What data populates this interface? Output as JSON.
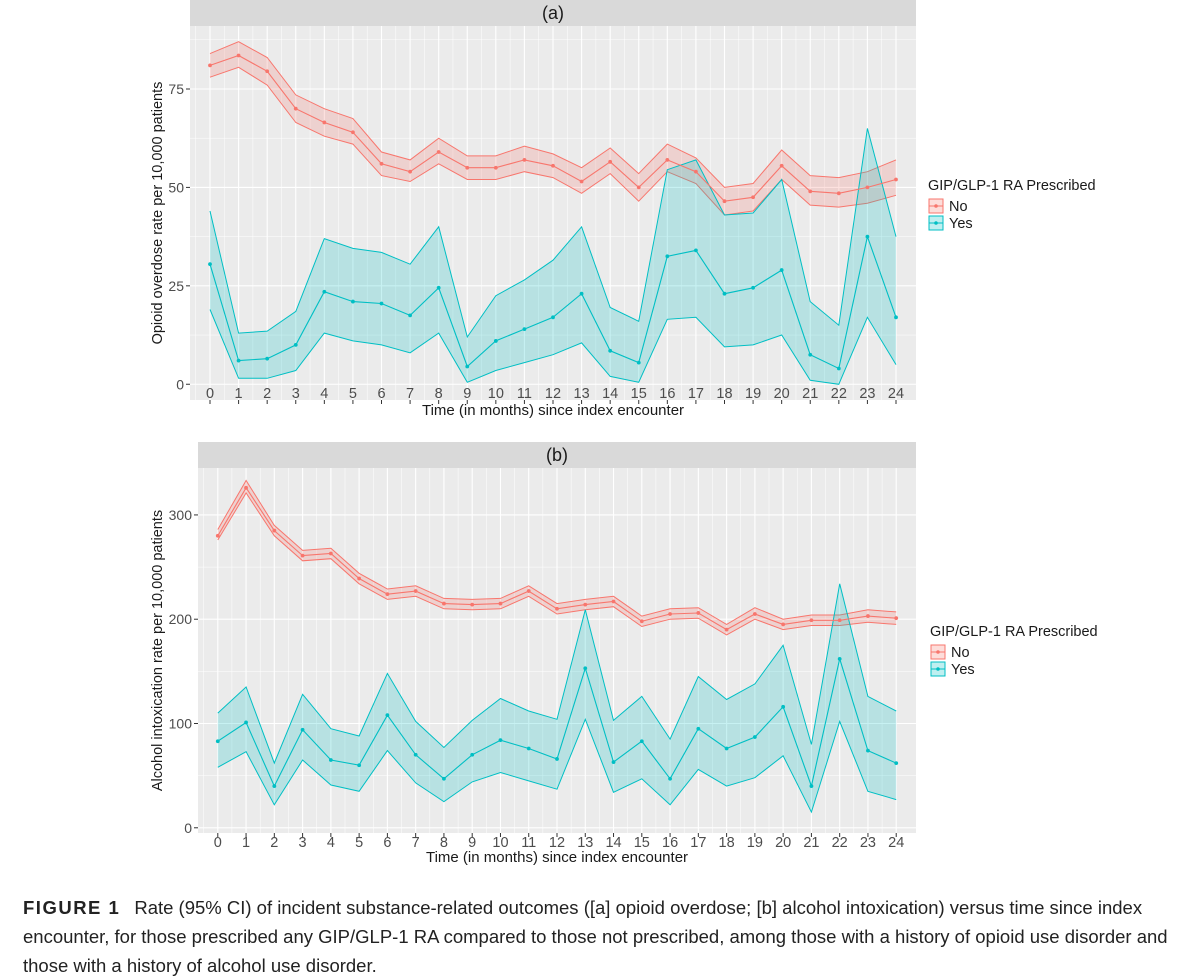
{
  "caption": {
    "label": "FIGURE 1",
    "text": "Rate (95% CI) of incident substance-related outcomes ([a] opioid overdose; [b] alcohol intoxication) versus time since index encounter, for those prescribed any GIP/GLP-1 RA compared to those not prescribed, among those with a history of opioid use disorder and those with a history of alcohol use disorder."
  },
  "colors": {
    "no": "#F8766D",
    "yes": "#00BFC4",
    "panel_bg": "#EBEBEB",
    "strip_bg": "#D9D9D9"
  },
  "chart_data": [
    {
      "type": "line",
      "panel": "(a)",
      "title": "",
      "xlabel": "Time (in months) since index encounter",
      "ylabel": "Opioid overdose rate per 10,000 patients",
      "x": [
        0,
        1,
        2,
        3,
        4,
        5,
        6,
        7,
        8,
        9,
        10,
        11,
        12,
        13,
        14,
        15,
        16,
        17,
        18,
        19,
        20,
        21,
        22,
        23,
        24
      ],
      "xlim": [
        -0.7,
        24.7
      ],
      "ylim": [
        -4,
        91
      ],
      "yticks": [
        0,
        25,
        50,
        75
      ],
      "legend_title": "GIP/GLP-1 RA Prescribed",
      "grid": true,
      "series": [
        {
          "name": "No",
          "values": [
            81,
            83.5,
            79.5,
            70,
            66.5,
            64,
            56,
            54,
            59,
            55,
            55,
            57,
            55.5,
            51.5,
            56.5,
            50,
            57,
            54,
            46.5,
            47.5,
            55.5,
            49,
            48.5,
            50,
            52
          ],
          "lower": [
            78,
            80.5,
            76,
            66.5,
            63,
            61,
            53,
            51.5,
            56,
            52,
            52,
            54,
            52.5,
            48.5,
            53.5,
            46.5,
            54,
            51,
            43,
            44,
            52,
            45.5,
            45,
            46,
            48
          ],
          "upper": [
            84,
            87,
            83,
            73.5,
            70,
            67.5,
            59,
            57,
            62.5,
            58,
            58,
            60.5,
            58.5,
            55,
            60,
            53.5,
            61,
            57.5,
            50,
            51,
            59.5,
            53,
            52.5,
            54,
            57
          ]
        },
        {
          "name": "Yes",
          "values": [
            30.5,
            6,
            6.5,
            10,
            23.5,
            21,
            20.5,
            17.5,
            24.5,
            4.5,
            11,
            14,
            17,
            23,
            8.5,
            5.5,
            32.5,
            34,
            23,
            24.5,
            29,
            7.5,
            4,
            37.5,
            17
          ],
          "lower": [
            19,
            1.5,
            1.5,
            3.5,
            13,
            11,
            10,
            8,
            13,
            0.5,
            3.5,
            5.5,
            7.5,
            10.5,
            2,
            0.5,
            16.5,
            17,
            9.5,
            10,
            12.5,
            1,
            0,
            17,
            5
          ],
          "upper": [
            44,
            13,
            13.5,
            18.5,
            37,
            34.5,
            33.5,
            30.5,
            40,
            12,
            22.5,
            26.5,
            31.5,
            40,
            19.5,
            16,
            54.5,
            57,
            43,
            43.5,
            52,
            21,
            15,
            65,
            37.5
          ]
        }
      ]
    },
    {
      "type": "line",
      "panel": "(b)",
      "title": "",
      "xlabel": "Time (in months) since index encounter",
      "ylabel": "Alcohol intoxication rate per 10,000 patients",
      "x": [
        0,
        1,
        2,
        3,
        4,
        5,
        6,
        7,
        8,
        9,
        10,
        11,
        12,
        13,
        14,
        15,
        16,
        17,
        18,
        19,
        20,
        21,
        22,
        23,
        24
      ],
      "xlim": [
        -0.7,
        24.7
      ],
      "ylim": [
        -5,
        345
      ],
      "yticks": [
        0,
        100,
        200,
        300
      ],
      "legend_title": "GIP/GLP-1 RA Prescribed",
      "grid": true,
      "series": [
        {
          "name": "No",
          "values": [
            280,
            326,
            285,
            261,
            263,
            239,
            224,
            227,
            215,
            214,
            215,
            227,
            210,
            214,
            217,
            198,
            205,
            206,
            190,
            205,
            195,
            199,
            199,
            203,
            201
          ],
          "lower": [
            276,
            321,
            280,
            256,
            258,
            234,
            219,
            222,
            210,
            209,
            210,
            222,
            205,
            209,
            212,
            193,
            200,
            201,
            185,
            200,
            190,
            194,
            194,
            197,
            195
          ],
          "upper": [
            286,
            333,
            290,
            266,
            268,
            244,
            229,
            232,
            220,
            219,
            220,
            232,
            215,
            219,
            222,
            203,
            210,
            211,
            195,
            211,
            200,
            204,
            204,
            209,
            207
          ]
        },
        {
          "name": "Yes",
          "values": [
            83,
            101,
            40,
            94,
            65,
            60,
            108,
            70,
            47,
            70,
            84,
            76,
            66,
            153,
            63,
            83,
            47,
            95,
            76,
            87,
            116,
            40,
            162,
            74,
            62
          ],
          "lower": [
            58,
            73,
            22,
            65,
            41,
            35,
            74,
            43,
            25,
            44,
            53,
            45,
            37,
            104,
            34,
            47,
            22,
            56,
            40,
            48,
            69,
            15,
            102,
            35,
            27
          ],
          "upper": [
            110,
            135,
            62,
            128,
            95,
            88,
            148,
            102,
            77,
            103,
            124,
            112,
            104,
            209,
            103,
            126,
            85,
            145,
            123,
            138,
            175,
            80,
            234,
            126,
            112
          ]
        }
      ]
    }
  ]
}
